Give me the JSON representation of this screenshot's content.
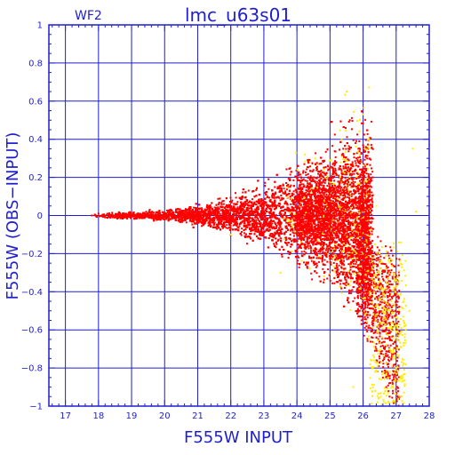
{
  "chart_data": {
    "type": "scatter",
    "title": "lmc_u63s01",
    "panel_label": "WF2",
    "xlabel": "F555W  INPUT",
    "ylabel": "F555W  (OBS−INPUT)",
    "xlim": [
      16.5,
      28
    ],
    "ylim": [
      -1,
      1
    ],
    "grid": true,
    "x_ticks": [
      17,
      18,
      19,
      20,
      21,
      22,
      23,
      24,
      25,
      26,
      27,
      28
    ],
    "y_ticks": [
      -1,
      -0.8,
      -0.6,
      -0.4,
      -0.2,
      0,
      0.2,
      0.4,
      0.6,
      0.8,
      1
    ],
    "x_tick_labels": [
      "17",
      "18",
      "19",
      "20",
      "21",
      "22",
      "23",
      "24",
      "25",
      "26",
      "27",
      "28"
    ],
    "y_tick_labels": [
      "−1",
      "−0.8",
      "−0.6",
      "−0.4",
      "−0.2",
      "0",
      "0.2",
      "0.4",
      "0.6",
      "0.8",
      "1"
    ],
    "colors": {
      "axes": "#1f1fd0",
      "grid": "#1f1fd0",
      "series_red": "#ff0000",
      "series_yellow": "#ffee00"
    },
    "series": [
      {
        "color": "#ff0000",
        "description_points": [
          [
            17.8,
            0.0
          ],
          [
            18.0,
            0.01
          ],
          [
            18.2,
            -0.01
          ],
          [
            18.5,
            0.0
          ],
          [
            18.8,
            0.005
          ],
          [
            19.0,
            -0.005
          ],
          [
            19.5,
            0.0
          ],
          [
            20.0,
            0.01
          ],
          [
            20.5,
            -0.01
          ],
          [
            21.0,
            0.0
          ],
          [
            21.5,
            0.02
          ],
          [
            22.0,
            -0.02
          ],
          [
            22.5,
            0.03
          ],
          [
            22.8,
            -0.04
          ],
          [
            23.0,
            0.05
          ],
          [
            23.3,
            -0.06
          ],
          [
            23.5,
            0.08
          ],
          [
            23.8,
            -0.1
          ],
          [
            24.0,
            0.12
          ],
          [
            24.2,
            -0.15
          ],
          [
            24.5,
            0.18
          ],
          [
            24.7,
            -0.2
          ],
          [
            25.0,
            0.25
          ],
          [
            25.2,
            -0.3
          ],
          [
            25.4,
            0.35
          ],
          [
            25.5,
            -0.35
          ],
          [
            25.6,
            0.5
          ],
          [
            25.7,
            -0.45
          ],
          [
            25.8,
            0.3
          ],
          [
            25.9,
            -0.5
          ],
          [
            26.0,
            0.2
          ],
          [
            26.1,
            -0.6
          ],
          [
            26.2,
            0.1
          ],
          [
            26.3,
            -0.55
          ],
          [
            26.4,
            -0.7
          ],
          [
            26.5,
            -0.75
          ],
          [
            26.6,
            -0.85
          ],
          [
            26.7,
            -0.9
          ],
          [
            26.8,
            -0.95
          ],
          [
            26.9,
            -0.92
          ]
        ]
      },
      {
        "color": "#ffee00",
        "description_points": [
          [
            24.5,
            -0.1
          ],
          [
            25.0,
            0.1
          ],
          [
            25.5,
            0.65
          ],
          [
            25.8,
            0.2
          ],
          [
            26.0,
            -0.2
          ],
          [
            26.2,
            -0.4
          ],
          [
            26.4,
            0.05
          ],
          [
            26.5,
            -0.3
          ],
          [
            26.8,
            -0.7
          ],
          [
            27.0,
            -0.8
          ],
          [
            27.2,
            -0.85
          ],
          [
            27.4,
            -0.5
          ],
          [
            27.5,
            0.35
          ],
          [
            27.6,
            0.02
          ],
          [
            23.5,
            -0.3
          ],
          [
            22.0,
            -0.1
          ],
          [
            25.7,
            -0.9
          ]
        ]
      }
    ]
  }
}
